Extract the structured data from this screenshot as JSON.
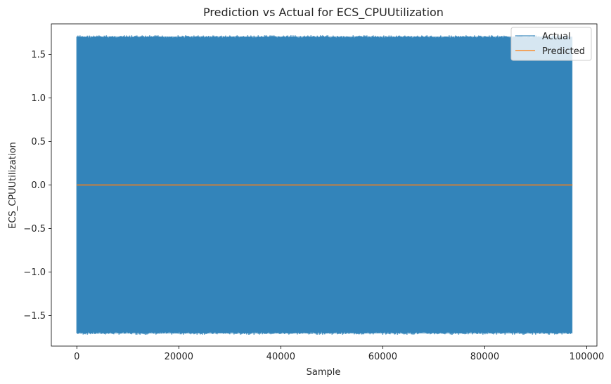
{
  "chart_data": {
    "type": "line",
    "title": "Prediction vs Actual for ECS_CPUUtilization",
    "xlabel": "Sample",
    "ylabel": "ECS_CPUUtilization",
    "xlim": [
      -5000,
      102000
    ],
    "ylim": [
      -1.85,
      1.85
    ],
    "xticks": [
      0,
      20000,
      40000,
      60000,
      80000,
      100000
    ],
    "yticks": [
      -1.5,
      -1.0,
      -0.5,
      0.0,
      0.5,
      1.0,
      1.5
    ],
    "xtick_labels": [
      "0",
      "20000",
      "40000",
      "60000",
      "80000",
      "100000"
    ],
    "ytick_labels": [
      "−1.5",
      "−1.0",
      "−0.5",
      "0.0",
      "0.5",
      "1.0",
      "1.5"
    ],
    "grid": false,
    "legend_position": "top-right",
    "series": [
      {
        "name": "Actual",
        "color": "#1f77b4",
        "opacity": 0.7,
        "x_range": [
          0,
          97200
        ],
        "envelope_upper": 1.72,
        "envelope_lower": -1.72,
        "pattern": "dense oscillation filling the envelope"
      },
      {
        "name": "Predicted",
        "color": "#ff7f0e",
        "opacity": 0.7,
        "x": [
          0,
          97200
        ],
        "y": [
          0.0,
          0.0
        ]
      }
    ]
  }
}
